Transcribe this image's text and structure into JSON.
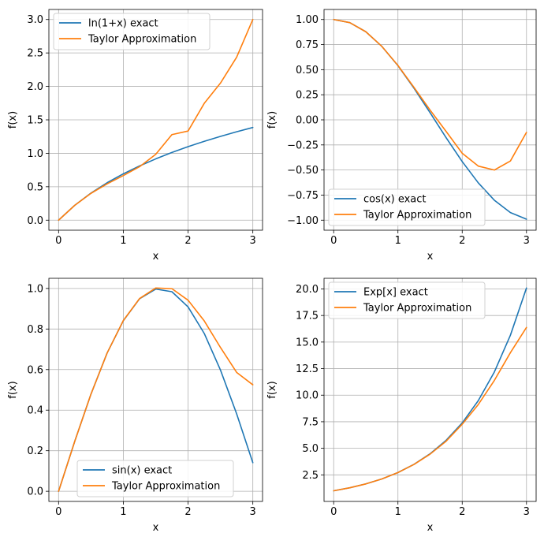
{
  "chart_data": [
    {
      "type": "line",
      "xlabel": "x",
      "ylabel": "f(x)",
      "xlim": [
        -0.15,
        3.15
      ],
      "ylim": [
        -0.15,
        3.15
      ],
      "xticks": [
        0,
        1,
        2,
        3
      ],
      "xtick_labels": [
        "0",
        "1",
        "2",
        "3"
      ],
      "yticks": [
        0.0,
        0.5,
        1.0,
        1.5,
        2.0,
        2.5,
        3.0
      ],
      "ytick_labels": [
        "0.0",
        "0.5",
        "1.0",
        "1.5",
        "2.0",
        "2.5",
        "3.0"
      ],
      "grid": true,
      "legend_position": "upper left",
      "series": [
        {
          "name": "ln(1+x) exact",
          "color": "#1f77b4",
          "x": [
            0,
            0.25,
            0.5,
            0.75,
            1.0,
            1.25,
            1.5,
            1.75,
            2.0,
            2.25,
            2.5,
            2.75,
            3.0
          ],
          "y": [
            0,
            0.223,
            0.405,
            0.56,
            0.693,
            0.811,
            0.916,
            1.012,
            1.099,
            1.179,
            1.253,
            1.322,
            1.386
          ]
        },
        {
          "name": "Taylor Approximation",
          "color": "#ff7f0e",
          "x": [
            0,
            0.25,
            0.5,
            0.75,
            1.0,
            1.25,
            1.5,
            1.75,
            2.0,
            2.25,
            2.5,
            2.75,
            3.0
          ],
          "y": [
            0,
            0.223,
            0.401,
            0.543,
            0.667,
            0.799,
            0.984,
            1.279,
            1.333,
            1.747,
            2.049,
            2.436,
            3.0
          ]
        }
      ]
    },
    {
      "type": "line",
      "xlabel": "x",
      "ylabel": "f(x)",
      "xlim": [
        -0.15,
        3.15
      ],
      "ylim": [
        -1.1,
        1.1
      ],
      "xticks": [
        0,
        1,
        2,
        3
      ],
      "xtick_labels": [
        "0",
        "1",
        "2",
        "3"
      ],
      "yticks": [
        -1.0,
        -0.75,
        -0.5,
        -0.25,
        0.0,
        0.25,
        0.5,
        0.75,
        1.0
      ],
      "ytick_labels": [
        "−1.00",
        "−0.75",
        "−0.50",
        "−0.25",
        "0.00",
        "0.25",
        "0.50",
        "0.75",
        "1.00"
      ],
      "grid": true,
      "legend_position": "lower left",
      "series": [
        {
          "name": "cos(x) exact",
          "color": "#1f77b4",
          "x": [
            0,
            0.25,
            0.5,
            0.75,
            1.0,
            1.25,
            1.5,
            1.75,
            2.0,
            2.25,
            2.5,
            2.75,
            3.0
          ],
          "y": [
            1.0,
            0.969,
            0.878,
            0.732,
            0.54,
            0.315,
            0.071,
            -0.178,
            -0.416,
            -0.628,
            -0.801,
            -0.924,
            -0.99
          ]
        },
        {
          "name": "Taylor Approximation",
          "color": "#ff7f0e",
          "x": [
            0,
            0.25,
            0.5,
            0.75,
            1.0,
            1.25,
            1.5,
            1.75,
            2.0,
            2.25,
            2.5,
            2.75,
            3.0
          ],
          "y": [
            1.0,
            0.969,
            0.878,
            0.732,
            0.542,
            0.323,
            0.097,
            -0.116,
            -0.333,
            -0.461,
            -0.5,
            -0.41,
            -0.125
          ]
        }
      ]
    },
    {
      "type": "line",
      "xlabel": "x",
      "ylabel": "f(x)",
      "xlim": [
        -0.15,
        3.15
      ],
      "ylim": [
        -0.05,
        1.05
      ],
      "xticks": [
        0,
        1,
        2,
        3
      ],
      "xtick_labels": [
        "0",
        "1",
        "2",
        "3"
      ],
      "yticks": [
        0.0,
        0.2,
        0.4,
        0.6,
        0.8,
        1.0
      ],
      "ytick_labels": [
        "0.0",
        "0.2",
        "0.4",
        "0.6",
        "0.8",
        "1.0"
      ],
      "grid": true,
      "legend_position": "lower center",
      "series": [
        {
          "name": "sin(x) exact",
          "color": "#1f77b4",
          "x": [
            0,
            0.25,
            0.5,
            0.75,
            1.0,
            1.25,
            1.5,
            1.75,
            2.0,
            2.25,
            2.5,
            2.75,
            3.0
          ],
          "y": [
            0,
            0.247,
            0.479,
            0.682,
            0.841,
            0.949,
            0.997,
            0.984,
            0.909,
            0.778,
            0.598,
            0.382,
            0.141
          ]
        },
        {
          "name": "Taylor Approximation",
          "color": "#ff7f0e",
          "x": [
            0,
            0.25,
            0.5,
            0.75,
            1.0,
            1.25,
            1.5,
            1.75,
            2.0,
            2.25,
            2.5,
            2.75,
            3.0
          ],
          "y": [
            0,
            0.247,
            0.479,
            0.682,
            0.842,
            0.95,
            1.002,
            0.999,
            0.942,
            0.84,
            0.709,
            0.586,
            0.525
          ]
        }
      ]
    },
    {
      "type": "line",
      "xlabel": "x",
      "ylabel": "f(x)",
      "xlim": [
        -0.15,
        3.15
      ],
      "ylim": [
        0.0,
        21.0
      ],
      "xticks": [
        0,
        1,
        2,
        3
      ],
      "xtick_labels": [
        "0",
        "1",
        "2",
        "3"
      ],
      "yticks": [
        2.5,
        5.0,
        7.5,
        10.0,
        12.5,
        15.0,
        17.5,
        20.0
      ],
      "ytick_labels": [
        "2.5",
        "5.0",
        "7.5",
        "10.0",
        "12.5",
        "15.0",
        "17.5",
        "20.0"
      ],
      "grid": true,
      "legend_position": "upper left",
      "series": [
        {
          "name": "Exp[x] exact",
          "color": "#1f77b4",
          "x": [
            0,
            0.25,
            0.5,
            0.75,
            1.0,
            1.25,
            1.5,
            1.75,
            2.0,
            2.25,
            2.5,
            2.75,
            3.0
          ],
          "y": [
            1.0,
            1.284,
            1.649,
            2.117,
            2.718,
            3.49,
            4.482,
            5.755,
            7.389,
            9.488,
            12.182,
            15.643,
            20.086
          ]
        },
        {
          "name": "Taylor Approximation",
          "color": "#ff7f0e",
          "x": [
            0,
            0.25,
            0.5,
            0.75,
            1.0,
            1.25,
            1.5,
            1.75,
            2.0,
            2.25,
            2.5,
            2.75,
            3.0
          ],
          "y": [
            1.0,
            1.284,
            1.648,
            2.117,
            2.717,
            3.481,
            4.448,
            5.671,
            7.267,
            9.12,
            11.39,
            14.0,
            16.375
          ]
        }
      ]
    }
  ]
}
